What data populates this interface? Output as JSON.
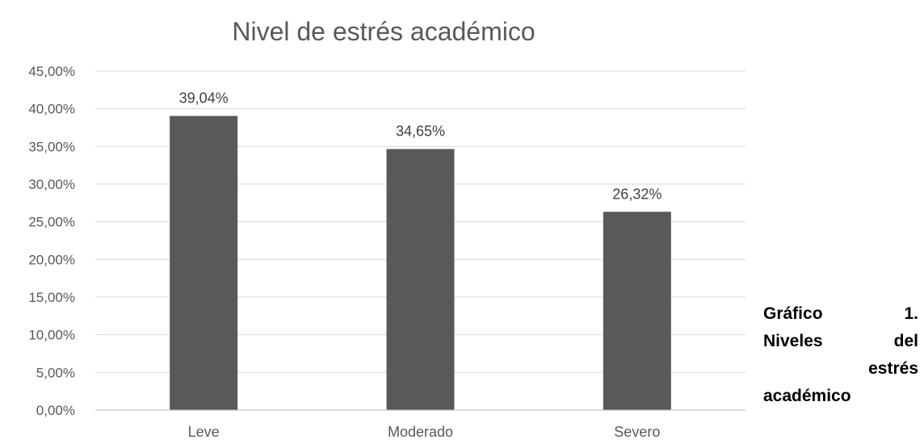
{
  "chart_data": {
    "type": "bar",
    "title": "Nivel de estrés académico",
    "categories": [
      "Leve",
      "Moderado",
      "Severo"
    ],
    "values": [
      39.04,
      34.65,
      26.32
    ],
    "data_labels": [
      "39,04%",
      "34,65%",
      "26,32%"
    ],
    "ylim": [
      0,
      45
    ],
    "yticks": [
      0,
      5,
      10,
      15,
      20,
      25,
      30,
      35,
      40,
      45
    ],
    "ytick_labels": [
      "0,00%",
      "5,00%",
      "10,00%",
      "15,00%",
      "20,00%",
      "25,00%",
      "30,00%",
      "35,00%",
      "40,00%",
      "45,00%"
    ],
    "xlabel": "",
    "ylabel": "",
    "grid": true,
    "legend": "none",
    "bar_color": "#595959"
  },
  "caption": {
    "line1_left": "Gráfico",
    "line1_right": "1.",
    "line2_left": "Niveles",
    "line2_right": "del",
    "line3": "estrés",
    "line4": "académico"
  }
}
